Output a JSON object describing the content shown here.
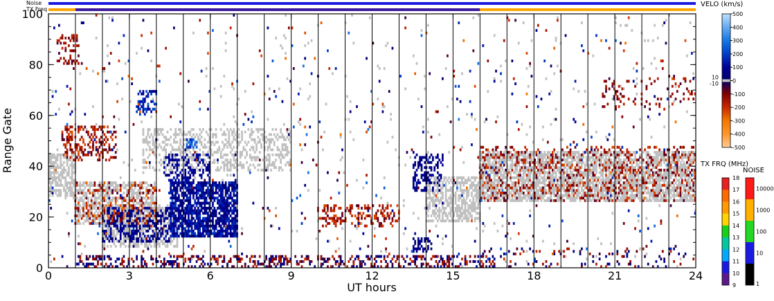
{
  "chart_data": {
    "type": "heatmap",
    "xlabel": "UT hours",
    "ylabel": "Range Gate",
    "xlim": [
      0,
      24
    ],
    "ylim": [
      0,
      100
    ],
    "x_ticks": [
      "0",
      "3",
      "6",
      "9",
      "12",
      "15",
      "18",
      "21",
      "24"
    ],
    "y_ticks": [
      "0",
      "20",
      "40",
      "60",
      "80",
      "100"
    ],
    "scan_boundaries_hours": [
      1,
      2,
      3,
      4,
      5,
      6,
      7,
      8,
      9,
      10,
      11,
      12,
      13,
      14,
      15,
      16,
      17,
      18,
      19,
      20,
      21,
      22,
      23
    ],
    "status_bars": {
      "noise_label": "Noise",
      "txfreq_label": "TX Freq",
      "noise": [
        {
          "from": 0,
          "to": 24,
          "color": "#1a1ae0"
        }
      ],
      "txfreq": [
        {
          "from": 0,
          "to": 1,
          "color": "#ffa500"
        },
        {
          "from": 1,
          "to": 16,
          "color": "#3c1a9c"
        },
        {
          "from": 16,
          "to": 24,
          "color": "#ffa500"
        }
      ]
    },
    "ground_scatter_color": "#c0c0c0",
    "regions": [
      {
        "kind": "ground",
        "x": [
          0,
          1.0
        ],
        "y": [
          28,
          45
        ],
        "density": 0.65
      },
      {
        "kind": "ground",
        "x": [
          1.0,
          4.0
        ],
        "y": [
          17,
          34
        ],
        "density": 0.55
      },
      {
        "kind": "ground",
        "x": [
          2.0,
          4.8
        ],
        "y": [
          8,
          25
        ],
        "density": 0.55
      },
      {
        "kind": "ground",
        "x": [
          3.5,
          9.0
        ],
        "y": [
          38,
          55
        ],
        "density": 0.35
      },
      {
        "kind": "ground",
        "x": [
          14.0,
          16.0
        ],
        "y": [
          18,
          36
        ],
        "density": 0.6
      },
      {
        "kind": "ground",
        "x": [
          16.0,
          24.0
        ],
        "y": [
          26,
          46
        ],
        "density": 0.7
      },
      {
        "kind": "ground",
        "x": [
          0,
          24
        ],
        "y": [
          0,
          100
        ],
        "density": 0.01
      },
      {
        "kind": "velocity",
        "x": [
          4.5,
          7.0
        ],
        "y": [
          12,
          34
        ],
        "density": 0.75,
        "vmin": 0,
        "vmax": 200
      },
      {
        "kind": "velocity",
        "x": [
          2.0,
          4.5
        ],
        "y": [
          10,
          24
        ],
        "density": 0.45,
        "vmin": 0,
        "vmax": 150
      },
      {
        "kind": "velocity",
        "x": [
          4.3,
          6.0
        ],
        "y": [
          33,
          45
        ],
        "density": 0.3,
        "vmin": 20,
        "vmax": 150
      },
      {
        "kind": "velocity",
        "x": [
          3.3,
          4.0
        ],
        "y": [
          60,
          70
        ],
        "density": 0.35,
        "vmin": 50,
        "vmax": 250
      },
      {
        "kind": "velocity",
        "x": [
          5.1,
          5.5
        ],
        "y": [
          47,
          51
        ],
        "density": 0.6,
        "vmin": 150,
        "vmax": 350
      },
      {
        "kind": "velocity",
        "x": [
          13.5,
          14.2
        ],
        "y": [
          6,
          12
        ],
        "density": 0.4,
        "vmin": 0,
        "vmax": 100
      },
      {
        "kind": "velocity",
        "x": [
          13.5,
          14.6
        ],
        "y": [
          30,
          45
        ],
        "density": 0.35,
        "vmin": 0,
        "vmax": 120
      },
      {
        "kind": "velocity",
        "x": [
          0.5,
          2.5
        ],
        "y": [
          42,
          56
        ],
        "density": 0.35,
        "vmin": -250,
        "vmax": -50
      },
      {
        "kind": "velocity",
        "x": [
          0.3,
          1.2
        ],
        "y": [
          80,
          92
        ],
        "density": 0.25,
        "vmin": -200,
        "vmax": -50
      },
      {
        "kind": "velocity",
        "x": [
          1.0,
          4.0
        ],
        "y": [
          17,
          34
        ],
        "density": 0.2,
        "vmin": -300,
        "vmax": -50
      },
      {
        "kind": "velocity",
        "x": [
          10.0,
          13.0
        ],
        "y": [
          16,
          25
        ],
        "density": 0.35,
        "vmin": -250,
        "vmax": -50
      },
      {
        "kind": "velocity",
        "x": [
          16.0,
          24.0
        ],
        "y": [
          26,
          48
        ],
        "density": 0.2,
        "vmin": -250,
        "vmax": -50
      },
      {
        "kind": "velocity",
        "x": [
          1.0,
          16.5
        ],
        "y": [
          0,
          5
        ],
        "density": 0.35,
        "vmin": -200,
        "vmax": 100
      },
      {
        "kind": "velocity",
        "x": [
          16.0,
          24.0
        ],
        "y": [
          0,
          8
        ],
        "density": 0.08,
        "vmin": -200,
        "vmax": 100
      },
      {
        "kind": "velocity",
        "x": [
          20.5,
          24.0
        ],
        "y": [
          62,
          75
        ],
        "density": 0.12,
        "vmin": -200,
        "vmax": -40
      },
      {
        "kind": "velocity",
        "x": [
          0,
          24
        ],
        "y": [
          0,
          100
        ],
        "density": 0.012,
        "vmin": -300,
        "vmax": 300
      }
    ]
  },
  "velo_colorbar": {
    "title": "VELO (km/s)",
    "labels": [
      "500",
      "400",
      "300",
      "200",
      "100",
      "0",
      "-100",
      "-200",
      "-300",
      "-400",
      "-500"
    ],
    "near_zero_labels": [
      "10",
      "-10"
    ]
  },
  "txfrq_colorbar": {
    "title": "TX FRQ (MHz)",
    "labels": [
      "18",
      "17",
      "16",
      "15",
      "14",
      "13",
      "12",
      "11",
      "10",
      "9"
    ],
    "colors": [
      "#e82020",
      "#ff6a00",
      "#ff9a00",
      "#ffd200",
      "#18d018",
      "#00c8a0",
      "#00a8ff",
      "#1a1ae0",
      "#5a1a8a",
      "#000000"
    ]
  },
  "noise_colorbar": {
    "title": "NOISE",
    "labels": [
      "10000",
      "1000",
      "100",
      "10",
      "1"
    ],
    "colors": [
      "#ff1a1a",
      "#ffb000",
      "#22d822",
      "#1a1ae0",
      "#000000"
    ]
  }
}
